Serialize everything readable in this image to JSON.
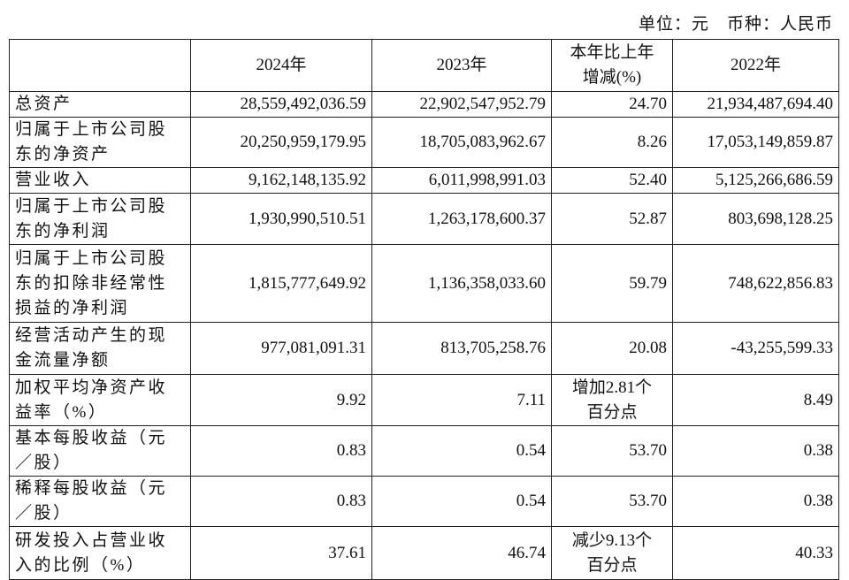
{
  "header": {
    "unit": "单位：元　币种：人民币"
  },
  "table": {
    "columns": [
      [
        ""
      ],
      [
        "2024年"
      ],
      [
        "2023年"
      ],
      [
        "本年比上年",
        "增减(%)"
      ],
      [
        "2022年"
      ]
    ],
    "rows": [
      [
        [
          "总资产"
        ],
        [
          "28,559,492,036.59"
        ],
        [
          "22,902,547,952.79"
        ],
        [
          "24.70"
        ],
        [
          "21,934,487,694.40"
        ]
      ],
      [
        [
          "归属于上市公司股",
          "东的净资产"
        ],
        [
          "20,250,959,179.95"
        ],
        [
          "18,705,083,962.67"
        ],
        [
          "8.26"
        ],
        [
          "17,053,149,859.87"
        ]
      ],
      [
        [
          "营业收入"
        ],
        [
          "9,162,148,135.92"
        ],
        [
          "6,011,998,991.03"
        ],
        [
          "52.40"
        ],
        [
          "5,125,266,686.59"
        ]
      ],
      [
        [
          "归属于上市公司股",
          "东的净利润"
        ],
        [
          "1,930,990,510.51"
        ],
        [
          "1,263,178,600.37"
        ],
        [
          "52.87"
        ],
        [
          "803,698,128.25"
        ]
      ],
      [
        [
          "归属于上市公司股",
          "东的扣除非经常性",
          "损益的净利润"
        ],
        [
          "1,815,777,649.92"
        ],
        [
          "1,136,358,033.60"
        ],
        [
          "59.79"
        ],
        [
          "748,622,856.83"
        ]
      ],
      [
        [
          "经营活动产生的现",
          "金流量净额"
        ],
        [
          "977,081,091.31"
        ],
        [
          "813,705,258.76"
        ],
        [
          "20.08"
        ],
        [
          "-43,255,599.33"
        ]
      ],
      [
        [
          "加权平均净资产收",
          "益率（%）"
        ],
        [
          "9.92"
        ],
        [
          "7.11"
        ],
        [
          "增加2.81个",
          "百分点"
        ],
        [
          "8.49"
        ]
      ],
      [
        [
          "基本每股收益（元",
          "／股）"
        ],
        [
          "0.83"
        ],
        [
          "0.54"
        ],
        [
          "53.70"
        ],
        [
          "0.38"
        ]
      ],
      [
        [
          "稀释每股收益（元",
          "／股）"
        ],
        [
          "0.83"
        ],
        [
          "0.54"
        ],
        [
          "53.70"
        ],
        [
          "0.38"
        ]
      ],
      [
        [
          "研发投入占营业收",
          "入的比例（%）"
        ],
        [
          "37.61"
        ],
        [
          "46.74"
        ],
        [
          "减少9.13个",
          "百分点"
        ],
        [
          "40.33"
        ]
      ]
    ]
  }
}
